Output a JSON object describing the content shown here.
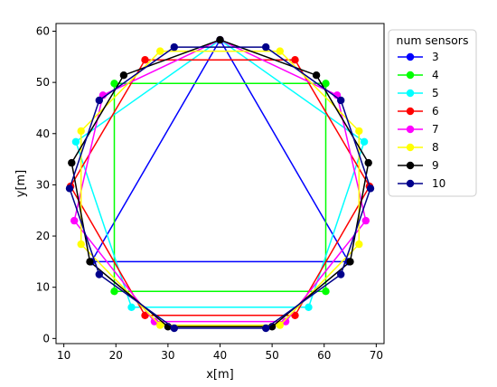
{
  "chart_data": {
    "type": "line",
    "title": "",
    "xlabel": "x[m]",
    "ylabel": "y[m]",
    "xlim": [
      8.5,
      71.5
    ],
    "ylim": [
      -1.0,
      61.5
    ],
    "xticks": [
      10,
      20,
      30,
      40,
      50,
      60,
      70
    ],
    "yticks": [
      0,
      10,
      20,
      30,
      40,
      50,
      60
    ],
    "grid": false,
    "legend": {
      "title": "num sensors",
      "placement": "outside-right"
    },
    "series": [
      {
        "name": "3",
        "color": "#0000ff",
        "points": [
          [
            40,
            58.3
          ],
          [
            15.3,
            15
          ],
          [
            64.7,
            15
          ]
        ]
      },
      {
        "name": "4",
        "color": "#00ff00",
        "points": [
          [
            60.3,
            49.8
          ],
          [
            19.7,
            49.8
          ],
          [
            19.7,
            9.2
          ],
          [
            60.3,
            9.2
          ]
        ]
      },
      {
        "name": "5",
        "color": "#00ffff",
        "points": [
          [
            40,
            58.3
          ],
          [
            12.3,
            38.4
          ],
          [
            23,
            6.1
          ],
          [
            57,
            6.1
          ],
          [
            67.7,
            38.4
          ]
        ]
      },
      {
        "name": "6",
        "color": "#ff0000",
        "points": [
          [
            54.4,
            54.4
          ],
          [
            25.6,
            54.4
          ],
          [
            11.3,
            29.7
          ],
          [
            25.6,
            4.5
          ],
          [
            54.4,
            4.5
          ],
          [
            68.7,
            29.7
          ]
        ]
      },
      {
        "name": "7",
        "color": "#ff00ff",
        "points": [
          [
            40,
            58.3
          ],
          [
            17.5,
            47.5
          ],
          [
            12,
            23
          ],
          [
            27.4,
            3.3
          ],
          [
            52.6,
            3.3
          ],
          [
            68,
            23
          ],
          [
            62.5,
            47.5
          ]
        ]
      },
      {
        "name": "8",
        "color": "#ffff00",
        "points": [
          [
            51.5,
            56.1
          ],
          [
            28.5,
            56.1
          ],
          [
            13.3,
            40.5
          ],
          [
            13.3,
            18.4
          ],
          [
            28.5,
            2.6
          ],
          [
            51.5,
            2.6
          ],
          [
            66.7,
            18.4
          ],
          [
            66.7,
            40.5
          ]
        ]
      },
      {
        "name": "9",
        "color": "#000000",
        "points": [
          [
            40,
            58.3
          ],
          [
            21.5,
            51.4
          ],
          [
            11.5,
            34.3
          ],
          [
            15,
            15
          ],
          [
            30,
            2.3
          ],
          [
            50,
            2.3
          ],
          [
            65,
            15
          ],
          [
            68.5,
            34.3
          ],
          [
            58.5,
            51.4
          ]
        ]
      },
      {
        "name": "10",
        "color": "#00008b",
        "points": [
          [
            48.8,
            56.9
          ],
          [
            31.2,
            56.9
          ],
          [
            16.8,
            46.5
          ],
          [
            11.1,
            29.3
          ],
          [
            16.8,
            12.5
          ],
          [
            31.2,
            2
          ],
          [
            48.8,
            2
          ],
          [
            63.2,
            12.5
          ],
          [
            68.9,
            29.3
          ],
          [
            63.2,
            46.5
          ]
        ]
      }
    ]
  }
}
